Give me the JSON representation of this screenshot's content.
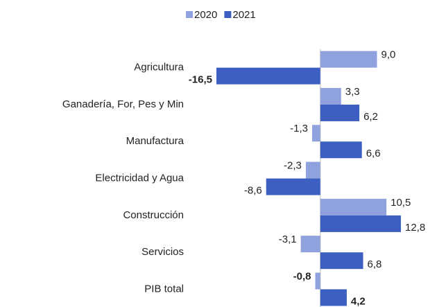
{
  "chart_data": {
    "type": "barh",
    "categories": [
      "Agricultura",
      "Ganadería, For, Pes y Min",
      "Manufactura",
      "Electricidad y Agua",
      "Construcción",
      "Servicios",
      "PIB total"
    ],
    "series": [
      {
        "name": "2020",
        "color": "#8fa2dd",
        "values": [
          9.0,
          3.3,
          -1.3,
          -2.3,
          10.5,
          -3.1,
          -0.8
        ],
        "value_labels": [
          "9,0",
          "3,3",
          "-1,3",
          "-2,3",
          "10,5",
          "-3,1",
          "-0,8"
        ],
        "bold_labels": [
          false,
          false,
          false,
          false,
          false,
          false,
          true
        ]
      },
      {
        "name": "2021",
        "color": "#3d5fc1",
        "values": [
          -16.5,
          6.2,
          6.6,
          -8.6,
          12.8,
          6.8,
          4.2
        ],
        "value_labels": [
          "-16,5",
          "6,2",
          "6,6",
          "-8,6",
          "12,8",
          "6,8",
          "4,2"
        ],
        "bold_labels": [
          true,
          false,
          false,
          false,
          false,
          false,
          true
        ]
      }
    ],
    "legend": "top"
  }
}
